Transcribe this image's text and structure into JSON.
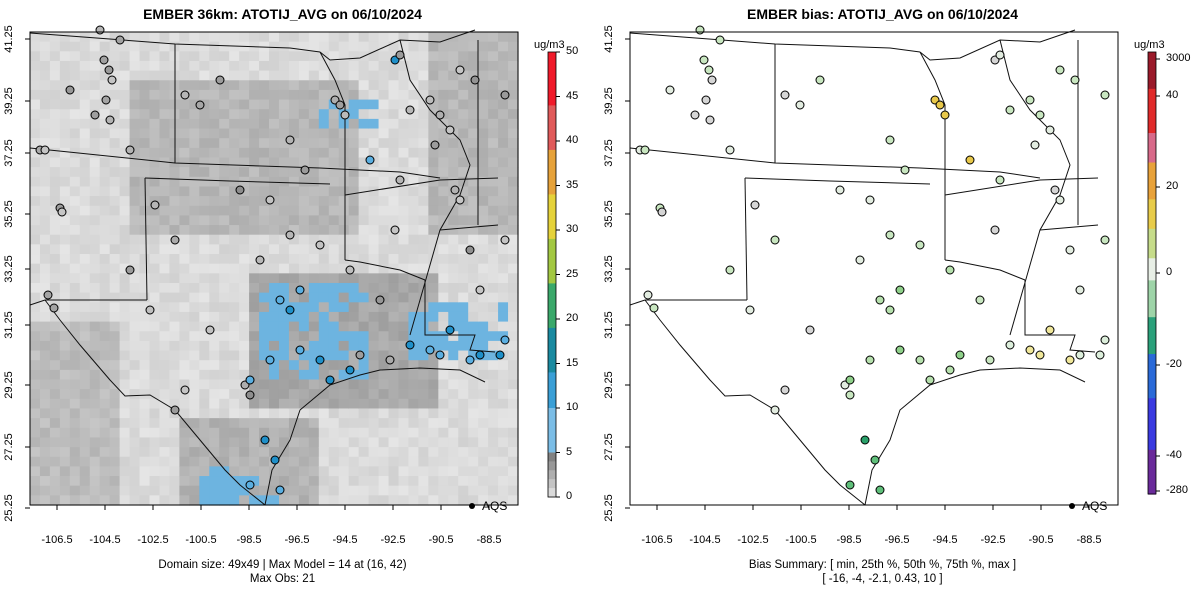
{
  "left_panel": {
    "title": "EMBER 36km: ATOTIJ_AVG on 06/10/2024",
    "unit": "ug/m3",
    "colorbar_ticks": [
      "50",
      "45",
      "40",
      "35",
      "30",
      "25",
      "20",
      "15",
      "10",
      "5",
      "0"
    ],
    "footer_line1": "Domain size: 49x49 | Max Model = 14 at (16, 42)",
    "footer_line2": "Max Obs: 21",
    "legend_label": "AQS",
    "colors": {
      "background_model": "#d9d9d9",
      "obs_high": "#5aaee0",
      "obs_low": "#bdbdbd"
    }
  },
  "right_panel": {
    "title": "EMBER bias: ATOTIJ_AVG on 06/10/2024",
    "unit": "ug/m3",
    "colorbar_ticks": [
      "3000",
      "40",
      "20",
      "0",
      "-20",
      "-40",
      "-280"
    ],
    "footer_line1": "Bias Summary: [ min, 25th %, 50th %, 75th %, max ]",
    "footer_line2": "[ -16,   -4,   -2.1,   0.43,   10 ]",
    "legend_label": "AQS",
    "colors": {
      "positive": "#e8c84a",
      "near_zero": "#dceedb",
      "negative": "#5fbf7a"
    }
  },
  "axes": {
    "x_ticks": [
      "-106.5",
      "-104.5",
      "-102.5",
      "-100.5",
      "-98.5",
      "-96.5",
      "-94.5",
      "-92.5",
      "-90.5",
      "-88.5"
    ],
    "y_ticks": [
      "41.25",
      "39.25",
      "37.25",
      "35.25",
      "33.25",
      "31.25",
      "29.25",
      "27.25",
      "25.25"
    ]
  }
}
